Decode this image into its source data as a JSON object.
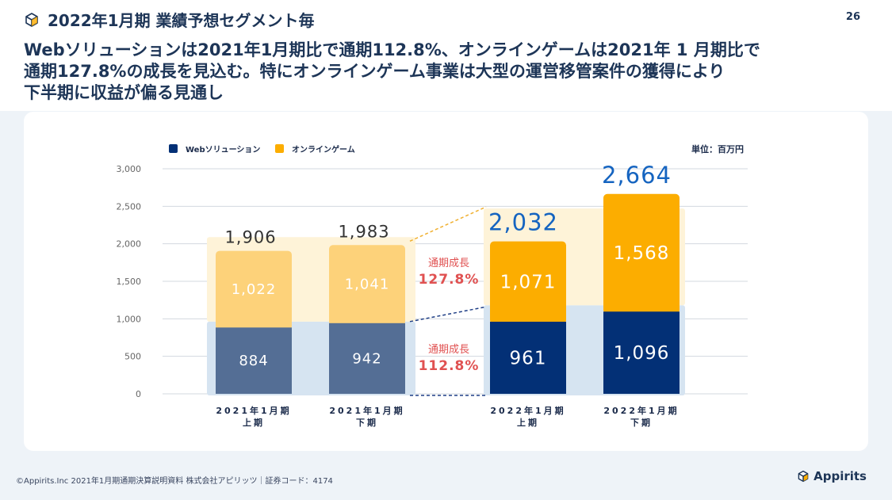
{
  "header": {
    "title": "2022年1月期 業績予想セグメント毎",
    "page_number": "26",
    "headline_lines": [
      "Webソリューションは2021年1月期比で通期112.8%、オンラインゲームは2021年 1 月期比で",
      "通期127.8%の成長を見込む。特にオンラインゲーム事業は大型の運営移管案件の獲得により",
      "下半期に収益が偏る見通し"
    ]
  },
  "chart_data": {
    "type": "bar",
    "stacked": true,
    "unit_label": "単位：百万円",
    "y_ticks": [
      "3,000",
      "2,500",
      "2,000",
      "1,500",
      "1,000",
      "500",
      "0"
    ],
    "ylim": [
      0,
      3000
    ],
    "grid": true,
    "legend_position": "top-left",
    "categories": [
      [
        "2021年1月期",
        "上期"
      ],
      [
        "2021年1月期",
        "下期"
      ],
      [
        "2022年1月期",
        "上期"
      ],
      [
        "2022年1月期",
        "下期"
      ]
    ],
    "series": [
      {
        "name": "Webソリューション",
        "values": [
          884,
          942,
          961,
          1096
        ],
        "labels": [
          "884",
          "942",
          "961",
          "1,096"
        ]
      },
      {
        "name": "オンラインゲーム",
        "values": [
          1022,
          1041,
          1071,
          1568
        ],
        "labels": [
          "1,022",
          "1,041",
          "1,071",
          "1,568"
        ]
      }
    ],
    "totals": [
      1906,
      1983,
      2032,
      2664
    ],
    "total_labels": [
      "1,906",
      "1,983",
      "2,032",
      "2,664"
    ],
    "annotations": [
      {
        "label": "通期成長",
        "value": "127.8%",
        "segment": "オンラインゲーム"
      },
      {
        "label": "通期成長",
        "value": "112.8%",
        "segment": "Webソリューション"
      }
    ],
    "colors": {
      "web_prev": "#546e95",
      "game_prev": "#fdd27a",
      "web_curr": "#033076",
      "game_curr": "#fcad00",
      "accent_text": "#1564c0",
      "growth_text": "#e05151"
    }
  },
  "footer": {
    "text": "©Appirits.Inc  2021年1月期通期決算説明資料  株式会社アピリッツ｜証券コード：4174",
    "logo": "Appirits"
  }
}
